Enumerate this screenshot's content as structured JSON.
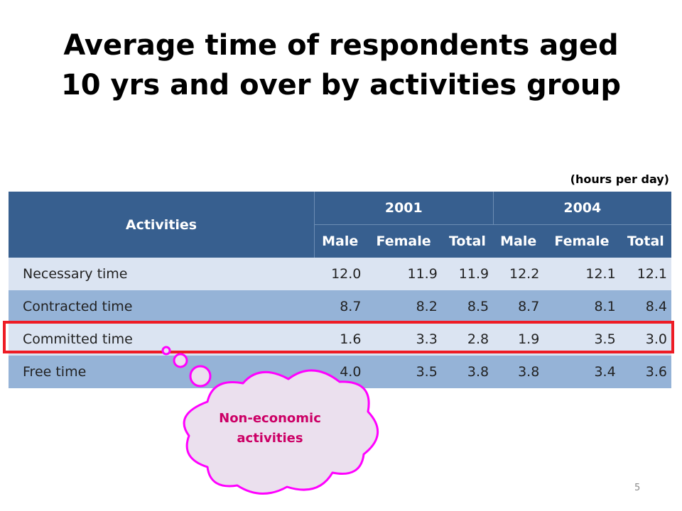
{
  "slide": {
    "title_line1": "Average time of respondents aged",
    "title_line2": "10 yrs and over by activities group",
    "unit_note": "(hours per day)",
    "page_number": "5"
  },
  "table": {
    "activities_header": "Activities",
    "years": [
      "2001",
      "2004"
    ],
    "sub_headers": [
      "Male",
      "Female",
      "Total",
      "Male",
      "Female",
      "Total"
    ],
    "rows": [
      {
        "label": "Necessary time",
        "values": [
          "12.0",
          "11.9",
          "11.9",
          "12.2",
          "12.1",
          "12.1"
        ]
      },
      {
        "label": "Contracted time",
        "values": [
          "8.7",
          "8.2",
          "8.5",
          "8.7",
          "8.1",
          "8.4"
        ]
      },
      {
        "label": "Committed time",
        "values": [
          "1.6",
          "3.3",
          "2.8",
          "1.9",
          "3.5",
          "3.0"
        ]
      },
      {
        "label": "Free time",
        "values": [
          "4.0",
          "3.5",
          "3.8",
          "3.8",
          "3.4",
          "3.6"
        ]
      }
    ]
  },
  "callout": {
    "line1": "Non-economic",
    "line2": "activities"
  },
  "colors": {
    "header_bg": "#375f8f",
    "row_light": "#dbe4f2",
    "row_dark": "#95b3d7",
    "highlight_border": "#ee1c25",
    "callout_fill": "#ebe0ee",
    "callout_border": "#ff00ff",
    "callout_text": "#cc0066"
  }
}
